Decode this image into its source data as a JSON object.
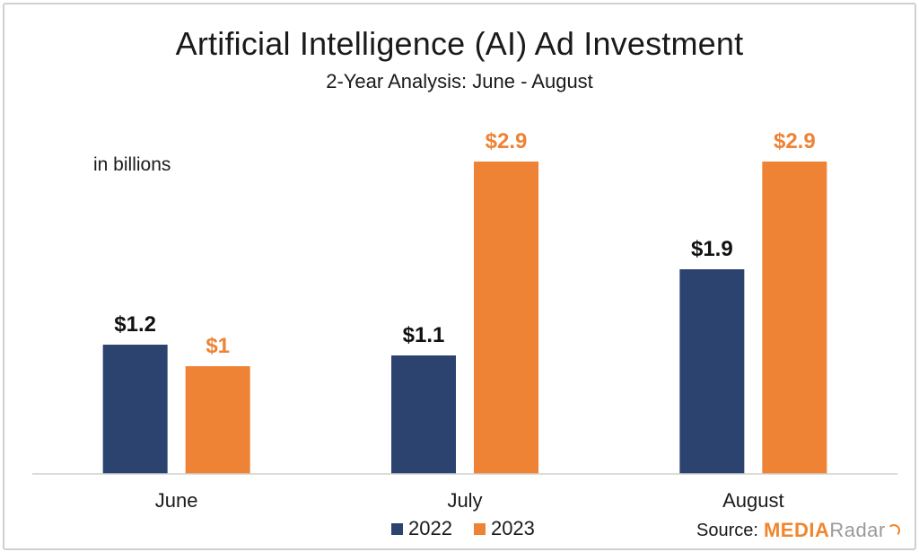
{
  "title": "Artificial Intelligence (AI) Ad Investment",
  "subtitle": "2-Year Analysis: June - August",
  "unit_note": "in billions",
  "source_label": "Source:",
  "brand": {
    "part1": "MEDIA",
    "part2": "Radar"
  },
  "colors": {
    "series_2022": "#2c4370",
    "series_2023": "#ee8235",
    "label_2022": "#111111",
    "label_2023": "#ee8235",
    "axis": "#cfcfcf"
  },
  "chart_data": {
    "type": "bar",
    "title": "Artificial Intelligence (AI) Ad Investment",
    "subtitle": "2-Year Analysis: June - August",
    "categories": [
      "June",
      "July",
      "August"
    ],
    "series": [
      {
        "name": "2022",
        "values": [
          1.2,
          1.1,
          1.9
        ],
        "labels": [
          "$1.2",
          "$1.1",
          "$1.9"
        ]
      },
      {
        "name": "2023",
        "values": [
          1.0,
          2.9,
          2.9
        ],
        "labels": [
          "$1",
          "$2.9",
          "$2.9"
        ]
      }
    ],
    "ylim": [
      0,
      3.3
    ],
    "grid": false,
    "legend": "bottom-center"
  }
}
